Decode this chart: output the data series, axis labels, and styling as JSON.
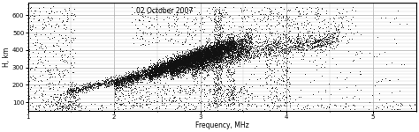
{
  "title": "02 October 2007",
  "xlabel": "Frequency, MHz",
  "ylabel": "H, km",
  "xlim": [
    1,
    5.5
  ],
  "ylim": [
    50,
    670
  ],
  "xticks": [
    1,
    2,
    3,
    4,
    5
  ],
  "yticks": [
    100,
    200,
    300,
    400,
    500,
    600
  ],
  "bg_color": "#ffffff",
  "dot_color": "#111111",
  "seed": 7
}
